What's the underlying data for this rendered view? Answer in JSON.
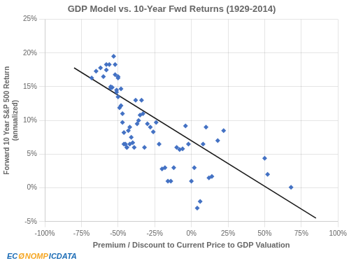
{
  "chart_data": {
    "type": "scatter",
    "title": "GDP Model vs. 10-Year Fwd Returns (1929-2014)",
    "x_label": "Premium / Discount to Current Price to GDP Valuation",
    "y_label": "Forward 10 Year S&P 500 Return\n(annualized)",
    "xlim": [
      -1.0,
      1.0
    ],
    "ylim": [
      -0.05,
      0.25
    ],
    "xticks": [
      {
        "value": -1.0,
        "label": "-100%"
      },
      {
        "value": -0.75,
        "label": "-75%"
      },
      {
        "value": -0.5,
        "label": "-50%"
      },
      {
        "value": -0.25,
        "label": "-25%"
      },
      {
        "value": 0.0,
        "label": "0%"
      },
      {
        "value": 0.25,
        "label": "25%"
      },
      {
        "value": 0.5,
        "label": "50%"
      },
      {
        "value": 0.75,
        "label": "75%"
      },
      {
        "value": 1.0,
        "label": "100%"
      }
    ],
    "yticks": [
      {
        "value": -0.05,
        "label": "-5%"
      },
      {
        "value": 0.0,
        "label": "0%"
      },
      {
        "value": 0.05,
        "label": "5%"
      },
      {
        "value": 0.1,
        "label": "10%"
      },
      {
        "value": 0.15,
        "label": "15%"
      },
      {
        "value": 0.2,
        "label": "20%"
      },
      {
        "value": 0.25,
        "label": "25%"
      }
    ],
    "grid": true,
    "series": [
      {
        "type": "scatter",
        "color": "#4472C4",
        "marker": "diamond",
        "x": [
          -0.68,
          -0.65,
          -0.62,
          -0.6,
          -0.58,
          -0.58,
          -0.56,
          -0.55,
          -0.55,
          -0.54,
          -0.53,
          -0.52,
          -0.52,
          -0.51,
          -0.51,
          -0.5,
          -0.5,
          -0.5,
          -0.49,
          -0.48,
          -0.48,
          -0.47,
          -0.47,
          -0.46,
          -0.46,
          -0.45,
          -0.44,
          -0.44,
          -0.43,
          -0.42,
          -0.42,
          -0.41,
          -0.4,
          -0.39,
          -0.38,
          -0.37,
          -0.36,
          -0.35,
          -0.34,
          -0.33,
          -0.32,
          -0.3,
          -0.28,
          -0.26,
          -0.24,
          -0.22,
          -0.2,
          -0.18,
          -0.16,
          -0.14,
          -0.12,
          -0.1,
          -0.08,
          -0.06,
          -0.04,
          -0.02,
          0.0,
          0.02,
          0.04,
          0.06,
          0.08,
          0.1,
          0.12,
          0.14,
          0.18,
          0.22,
          0.5,
          0.52,
          0.68
        ],
        "values": [
          0.163,
          0.173,
          0.178,
          0.165,
          0.183,
          0.175,
          0.183,
          0.148,
          0.15,
          0.149,
          0.195,
          0.168,
          0.183,
          0.145,
          0.142,
          0.163,
          0.135,
          0.165,
          0.119,
          0.147,
          0.122,
          0.097,
          0.11,
          0.065,
          0.082,
          0.065,
          0.06,
          0.06,
          0.085,
          0.065,
          0.09,
          0.075,
          0.067,
          0.06,
          0.13,
          0.095,
          0.1,
          0.108,
          0.13,
          0.11,
          0.06,
          0.095,
          0.09,
          0.083,
          0.097,
          0.065,
          0.028,
          0.03,
          0.01,
          0.01,
          0.03,
          0.06,
          0.057,
          0.058,
          0.092,
          0.065,
          0.01,
          0.03,
          -0.03,
          -0.02,
          0.065,
          0.09,
          0.015,
          0.017,
          0.07,
          0.085,
          0.044,
          0.02,
          0.001
        ]
      },
      {
        "type": "line",
        "color": "#1a1a1a",
        "line_style": "solid",
        "x": [
          -0.8,
          0.85
        ],
        "values": [
          0.178,
          -0.045
        ]
      }
    ],
    "annotations": [
      {
        "text": "EC",
        "color": "#1a6bb5"
      },
      {
        "text": "Ø",
        "color": "#f5a623"
      },
      {
        "text": "NOMP",
        "color": "#f5a623"
      },
      {
        "text": "ICDATA",
        "color": "#1a6bb5"
      }
    ]
  }
}
